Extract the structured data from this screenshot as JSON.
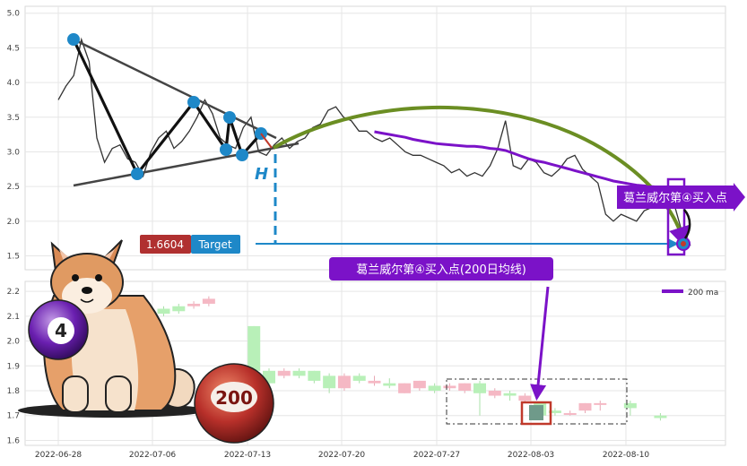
{
  "chart_data": [
    {
      "type": "line",
      "panel": "price",
      "yticks": [
        "5.0",
        "4.5",
        "4.0",
        "3.5",
        "3.0",
        "2.5",
        "2.0",
        "1.5"
      ],
      "ylim": [
        1.3,
        5.1
      ],
      "x_tick_labels": [
        "2022-06-28",
        "2022-07-06",
        "2022-07-13",
        "2022-07-20",
        "2022-07-27",
        "2022-08-03",
        "2022-08-10"
      ],
      "series": [
        {
          "name": "",
          "color": "#333333",
          "values": [
            3.75,
            3.95,
            4.1,
            4.62,
            4.3,
            3.2,
            2.85,
            3.05,
            3.1,
            2.9,
            2.85,
            2.65,
            3.0,
            3.2,
            3.3,
            3.05,
            3.15,
            3.3,
            3.5,
            3.75,
            3.55,
            3.2,
            3.1,
            3.05,
            3.35,
            3.5,
            3.0,
            2.95,
            3.1,
            3.2,
            3.05,
            3.15,
            3.2,
            3.35,
            3.4,
            3.6,
            3.65,
            3.5,
            3.45,
            3.3,
            3.3,
            3.2,
            3.15,
            3.2,
            3.1,
            3.0,
            2.95,
            2.95,
            2.9,
            2.85,
            2.8,
            2.7,
            2.75,
            2.65,
            2.7,
            2.65,
            2.8,
            3.05,
            3.45,
            2.8,
            2.75,
            2.9,
            2.85,
            2.7,
            2.65,
            2.75,
            2.9,
            2.95,
            2.75,
            2.65,
            2.55,
            2.1,
            2.0,
            2.1,
            2.05,
            2.0,
            2.15,
            2.2,
            2.2,
            2.25,
            2.2,
            1.8,
            1.65
          ]
        },
        {
          "name": "",
          "color": "#7B12C8",
          "values": [
            null,
            null,
            null,
            null,
            null,
            null,
            null,
            null,
            null,
            null,
            null,
            null,
            null,
            null,
            null,
            null,
            null,
            null,
            null,
            null,
            null,
            null,
            null,
            null,
            null,
            null,
            null,
            null,
            null,
            null,
            null,
            null,
            null,
            null,
            null,
            null,
            null,
            null,
            null,
            null,
            null,
            3.29,
            3.27,
            3.25,
            3.23,
            3.21,
            3.18,
            3.16,
            3.14,
            3.12,
            3.11,
            3.1,
            3.09,
            3.08,
            3.08,
            3.07,
            3.05,
            3.04,
            3.02,
            2.98,
            2.94,
            2.9,
            2.87,
            2.85,
            2.82,
            2.79,
            2.76,
            2.73,
            2.7,
            2.67,
            2.64,
            2.61,
            2.58,
            2.56,
            2.54,
            2.52,
            2.51,
            2.5,
            2.49,
            2.48,
            2.46,
            2.45,
            2.4
          ]
        }
      ]
    },
    {
      "type": "bar",
      "panel": "volume",
      "yticks": [
        "2.2",
        "2.1",
        "2.0",
        "1.9",
        "1.8",
        "1.7",
        "1.6"
      ],
      "ylim": [
        1.58,
        2.24
      ],
      "x_tick_labels": [
        "2022-06-28",
        "2022-07-06",
        "2022-07-13",
        "2022-07-20",
        "2022-07-27",
        "2022-08-03",
        "2022-08-10"
      ],
      "candles": [
        {
          "d": 7,
          "o": 2.13,
          "c": 2.11,
          "h": 2.14,
          "l": 2.1,
          "up": true
        },
        {
          "d": 8,
          "o": 2.12,
          "c": 2.14,
          "h": 2.15,
          "l": 2.11,
          "up": true
        },
        {
          "d": 9,
          "o": 2.14,
          "c": 2.15,
          "h": 2.16,
          "l": 2.13,
          "up": false
        },
        {
          "d": 10,
          "o": 2.15,
          "c": 2.17,
          "h": 2.18,
          "l": 2.14,
          "up": false
        },
        {
          "d": 13,
          "o": 2.06,
          "c": 1.88,
          "h": 2.06,
          "l": 1.86,
          "up": true
        },
        {
          "d": 14,
          "o": 1.88,
          "c": 1.83,
          "h": 1.89,
          "l": 1.82,
          "up": true
        },
        {
          "d": 15,
          "o": 1.86,
          "c": 1.88,
          "h": 1.89,
          "l": 1.85,
          "up": false
        },
        {
          "d": 16,
          "o": 1.86,
          "c": 1.88,
          "h": 1.89,
          "l": 1.85,
          "up": true
        },
        {
          "d": 17,
          "o": 1.88,
          "c": 1.84,
          "h": 1.88,
          "l": 1.83,
          "up": true
        },
        {
          "d": 18,
          "o": 1.86,
          "c": 1.81,
          "h": 1.87,
          "l": 1.79,
          "up": true
        },
        {
          "d": 19,
          "o": 1.81,
          "c": 1.86,
          "h": 1.87,
          "l": 1.8,
          "up": false
        },
        {
          "d": 20,
          "o": 1.84,
          "c": 1.86,
          "h": 1.87,
          "l": 1.83,
          "up": true
        },
        {
          "d": 21,
          "o": 1.83,
          "c": 1.84,
          "h": 1.86,
          "l": 1.82,
          "up": false
        },
        {
          "d": 22,
          "o": 1.82,
          "c": 1.83,
          "h": 1.85,
          "l": 1.81,
          "up": true
        },
        {
          "d": 23,
          "o": 1.79,
          "c": 1.83,
          "h": 1.83,
          "l": 1.79,
          "up": false
        },
        {
          "d": 24,
          "o": 1.81,
          "c": 1.84,
          "h": 1.84,
          "l": 1.8,
          "up": false
        },
        {
          "d": 25,
          "o": 1.8,
          "c": 1.82,
          "h": 1.83,
          "l": 1.79,
          "up": true
        },
        {
          "d": 26,
          "o": 1.81,
          "c": 1.82,
          "h": 1.83,
          "l": 1.8,
          "up": false
        },
        {
          "d": 27,
          "o": 1.8,
          "c": 1.83,
          "h": 1.83,
          "l": 1.79,
          "up": false
        },
        {
          "d": 28,
          "o": 1.83,
          "c": 1.79,
          "h": 1.84,
          "l": 1.7,
          "up": true
        },
        {
          "d": 29,
          "o": 1.8,
          "c": 1.78,
          "h": 1.81,
          "l": 1.77,
          "up": false
        },
        {
          "d": 30,
          "o": 1.79,
          "c": 1.78,
          "h": 1.8,
          "l": 1.76,
          "up": true
        },
        {
          "d": 31,
          "o": 1.76,
          "c": 1.78,
          "h": 1.79,
          "l": 1.75,
          "up": false
        },
        {
          "d": 32,
          "o": 1.75,
          "c": 1.7,
          "h": 1.75,
          "l": 1.69,
          "up": true
        },
        {
          "d": 33,
          "o": 1.72,
          "c": 1.71,
          "h": 1.73,
          "l": 1.7,
          "up": true
        },
        {
          "d": 34,
          "o": 1.71,
          "c": 1.71,
          "h": 1.72,
          "l": 1.7,
          "up": false
        },
        {
          "d": 35,
          "o": 1.72,
          "c": 1.75,
          "h": 1.75,
          "l": 1.71,
          "up": false
        },
        {
          "d": 36,
          "o": 1.75,
          "c": 1.75,
          "h": 1.76,
          "l": 1.72,
          "up": false
        },
        {
          "d": 38,
          "o": 1.75,
          "c": 1.73,
          "h": 1.76,
          "l": 1.7,
          "up": true
        },
        {
          "d": 40,
          "o": 1.7,
          "c": 1.69,
          "h": 1.71,
          "l": 1.68,
          "up": true
        }
      ]
    }
  ],
  "legend": {
    "label": "200 ma",
    "color": "#7B12C8"
  },
  "annotations": {
    "price_tag": "1.6604",
    "target_label": "Target",
    "h_label": "H",
    "arrow_label": "葛兰威尔第④买入点",
    "callout_label": "葛兰威尔第④买入点(200日均线)"
  },
  "badges": {
    "ball_4": "4",
    "ball_200": "200"
  },
  "colors": {
    "green_curve": "#6B8E23",
    "purple": "#7B12C8",
    "blue": "#1E88C8",
    "red": "#C0392B"
  }
}
